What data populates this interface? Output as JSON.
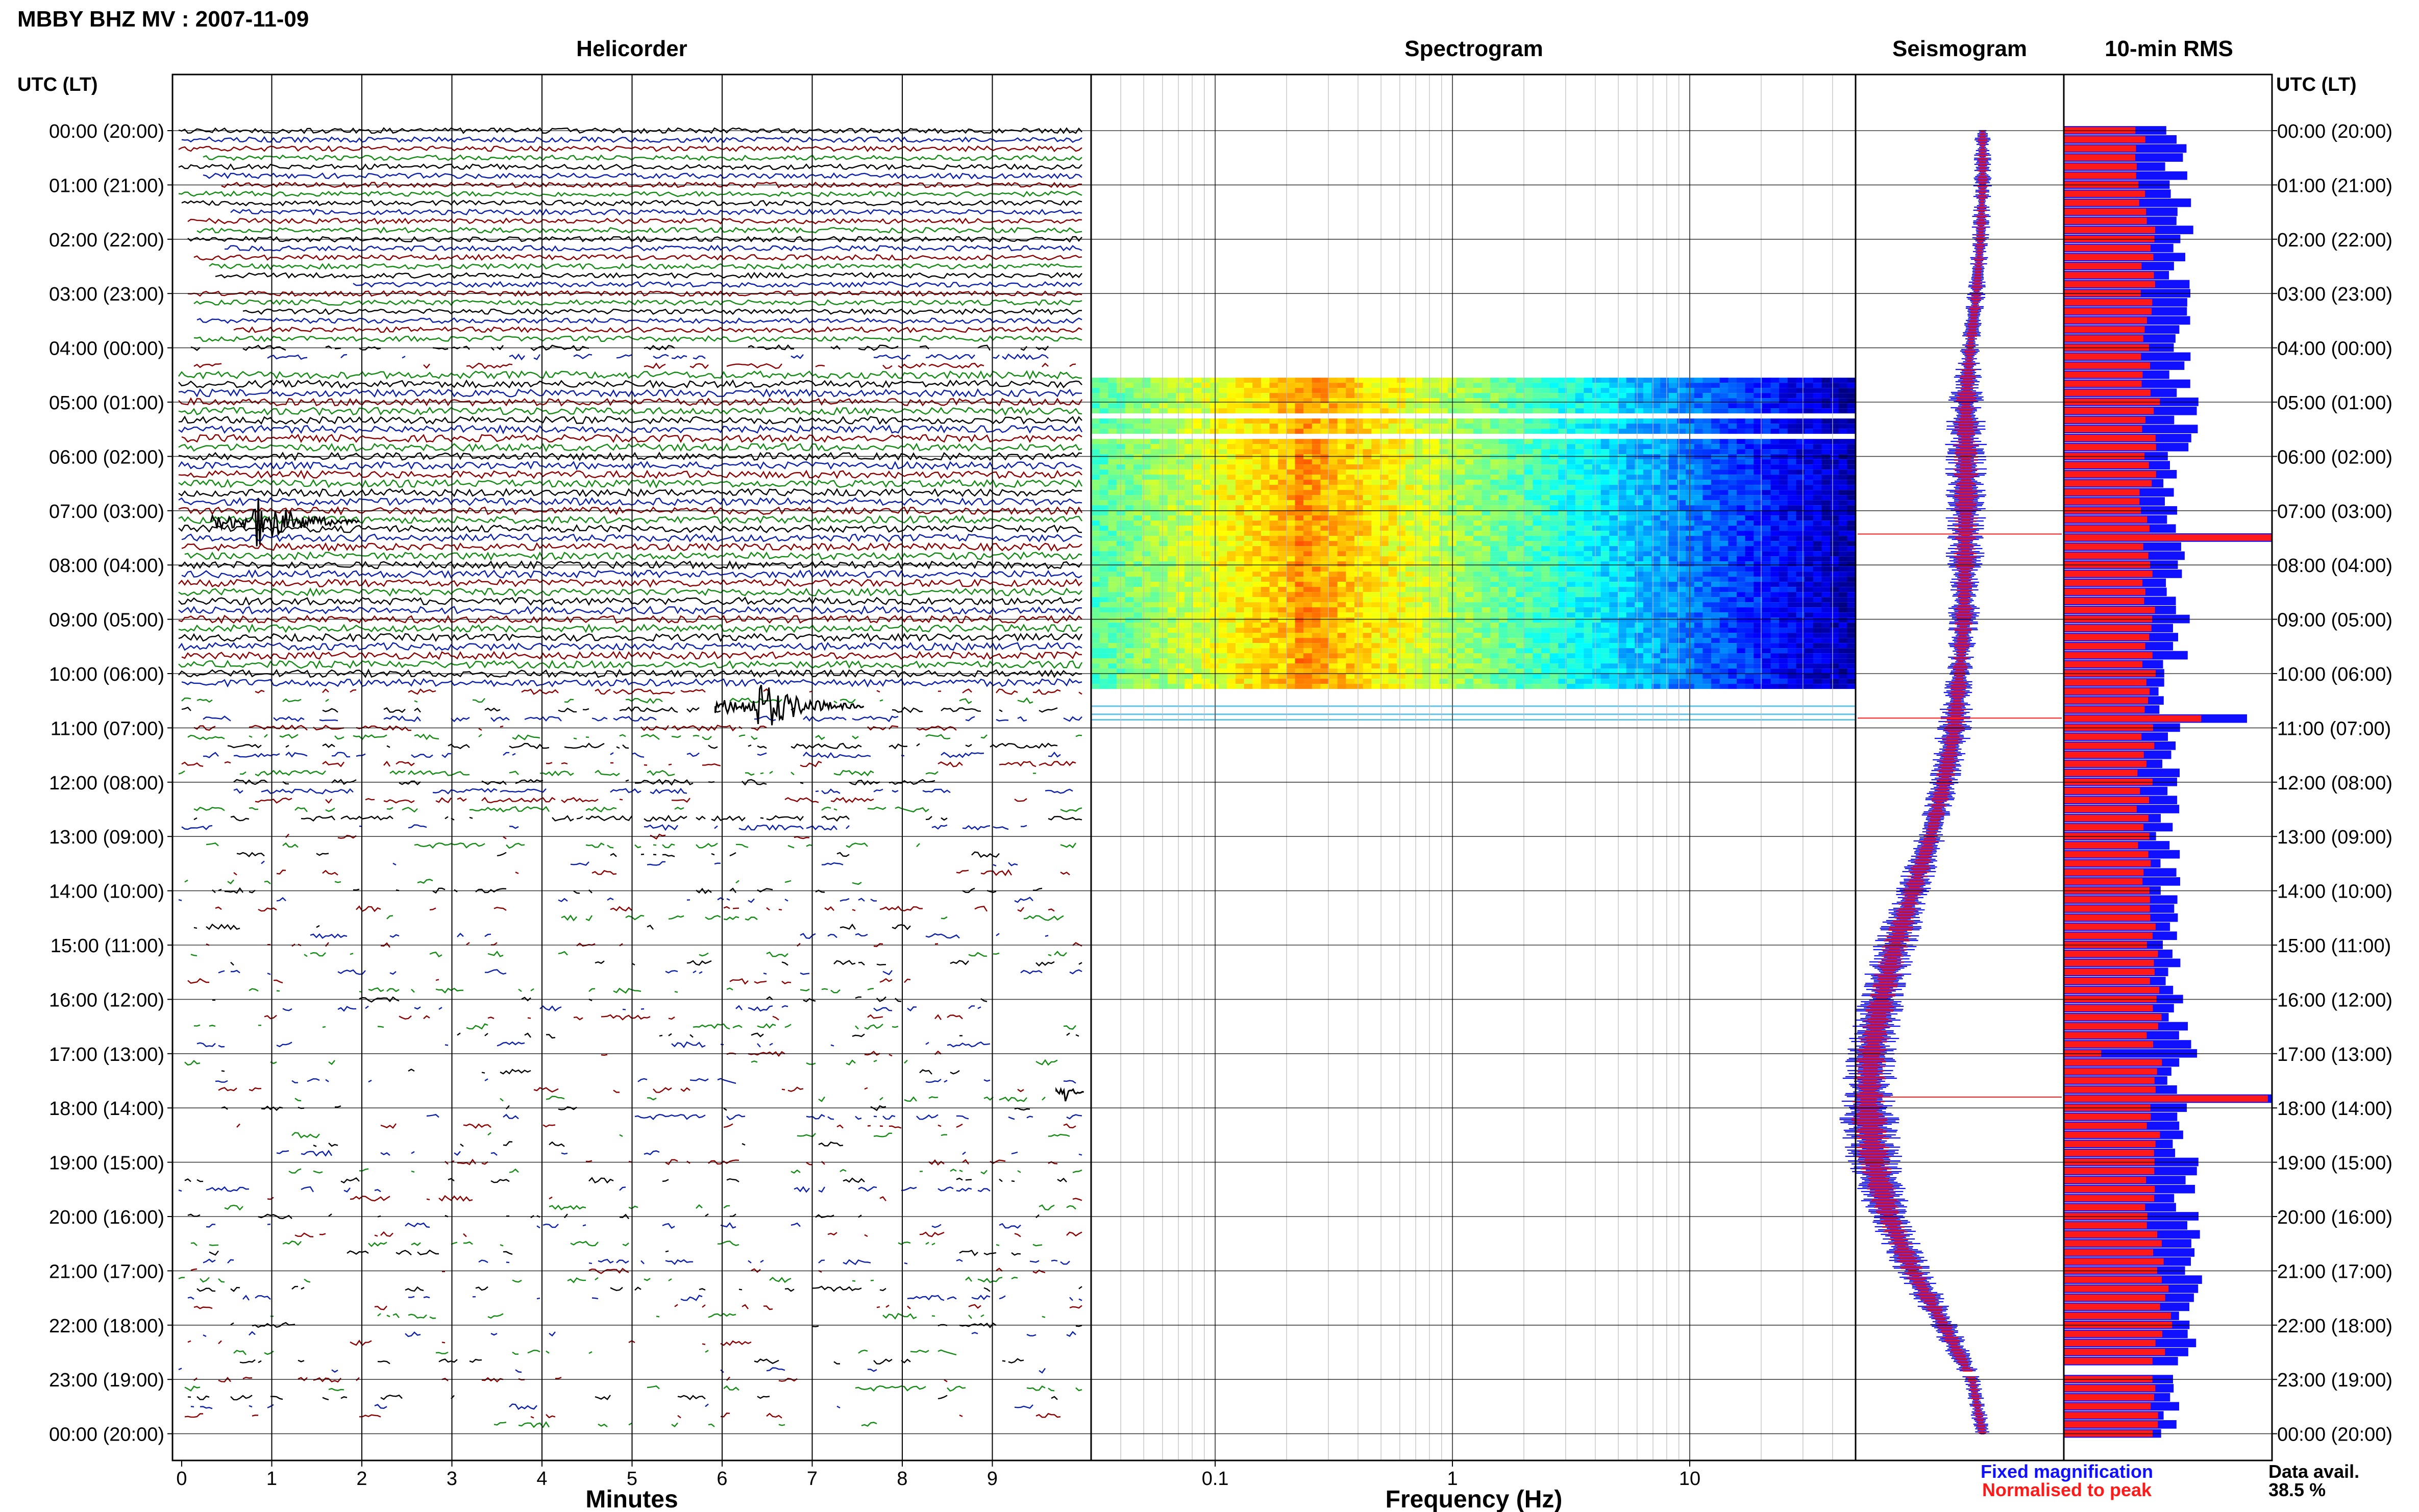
{
  "header": {
    "station_title": "MBBY BHZ MV : 2007-11-09",
    "panel_helicorder": "Helicorder",
    "panel_spectrogram": "Spectrogram",
    "panel_seismogram": "Seismogram",
    "panel_rms": "10-min RMS",
    "left_time_header": "UTC (LT)",
    "right_time_header": "UTC (LT)"
  },
  "footer": {
    "minutes_label": "Minutes",
    "frequency_label": "Frequency (Hz)",
    "legend_fixed": "Fixed magnification",
    "legend_normalised": "Normalised to peak",
    "data_avail_label": "Data avail.",
    "data_avail_value": "38.5 %"
  },
  "colors": {
    "trace_black": "#000000",
    "trace_red": "#8b0000",
    "trace_blue": "#0b1fa8",
    "trace_green": "#138a13",
    "fixed_blue": "#1010ff",
    "normalised_red": "#ff1a1a",
    "grid": "#000000"
  },
  "chart_data": [
    {
      "type": "line",
      "name": "helicorder",
      "title": "Helicorder",
      "xlabel": "Minutes",
      "x_ticks": [
        "0",
        "1",
        "2",
        "3",
        "4",
        "5",
        "6",
        "7",
        "8",
        "9"
      ],
      "xlim": [
        0,
        10
      ],
      "y_ticks": [
        "00:00 (20:00)",
        "01:00 (21:00)",
        "02:00 (22:00)",
        "03:00 (23:00)",
        "04:00 (00:00)",
        "05:00 (01:00)",
        "06:00 (02:00)",
        "07:00 (03:00)",
        "08:00 (04:00)",
        "09:00 (05:00)",
        "10:00 (06:00)",
        "11:00 (07:00)",
        "12:00 (08:00)",
        "13:00 (09:00)",
        "14:00 (10:00)",
        "15:00 (11:00)",
        "16:00 (12:00)",
        "17:00 (13:00)",
        "18:00 (14:00)",
        "19:00 (15:00)",
        "20:00 (16:00)",
        "21:00 (17:00)",
        "22:00 (18:00)",
        "23:00 (19:00)",
        "00:00 (20:00)"
      ],
      "continuous_data_hours_utc": [
        4.4,
        10.2
      ],
      "events": [
        {
          "hour": 7.2,
          "minute": 0.8,
          "amplitude": "large"
        },
        {
          "hour": 10.6,
          "minute": 6.4,
          "amplitude": "large"
        },
        {
          "hour": 17.7,
          "minute": 9.8,
          "amplitude": "small"
        }
      ]
    },
    {
      "type": "heatmap",
      "name": "spectrogram",
      "title": "Spectrogram",
      "xlabel": "Frequency (Hz)",
      "x_scale": "log",
      "x_ticks": [
        "0.1",
        "1",
        "10"
      ],
      "xlim": [
        0.03,
        50
      ],
      "rows_hours_utc": [
        4.55,
        10.2
      ],
      "peak_energy_hz": [
        0.15,
        0.4
      ],
      "extra_lines_hours_utc": [
        10.6,
        10.75,
        10.85
      ]
    },
    {
      "type": "line",
      "name": "seismogram",
      "title": "Seismogram",
      "hours": [
        0,
        1,
        2,
        3,
        4,
        5,
        6,
        7,
        8,
        9,
        10,
        11,
        12,
        13,
        14,
        15,
        16,
        17,
        18,
        19,
        20,
        21,
        22,
        23,
        24
      ],
      "center_offset": [
        0.22,
        0.22,
        0.2,
        0.16,
        0.1,
        0.06,
        0.06,
        0.06,
        0.05,
        0.04,
        0.0,
        -0.05,
        -0.15,
        -0.28,
        -0.45,
        -0.62,
        -0.75,
        -0.85,
        -0.88,
        -0.82,
        -0.68,
        -0.45,
        -0.15,
        0.12,
        0.22
      ],
      "spread": [
        0.05,
        0.06,
        0.06,
        0.06,
        0.06,
        0.12,
        0.14,
        0.14,
        0.12,
        0.1,
        0.08,
        0.12,
        0.1,
        0.1,
        0.12,
        0.14,
        0.16,
        0.16,
        0.2,
        0.18,
        0.14,
        0.12,
        0.1,
        0.06,
        0.05
      ],
      "spikes_hours": [
        7.43,
        10.82,
        17.8
      ]
    },
    {
      "type": "bar",
      "name": "rms",
      "title": "10-min RMS",
      "bin_minutes": 10,
      "xlim": [
        0,
        1
      ],
      "fixed_profile_hours": [
        0,
        2,
        4,
        5,
        7,
        9,
        11,
        13,
        15,
        17,
        19,
        21,
        22,
        23,
        24
      ],
      "fixed_profile_values": [
        0.52,
        0.58,
        0.55,
        0.6,
        0.52,
        0.55,
        0.5,
        0.5,
        0.52,
        0.55,
        0.58,
        0.6,
        0.62,
        0.56,
        0.52
      ],
      "normalised_profile_hours": [
        0,
        2,
        4,
        5,
        7,
        9,
        11,
        13,
        15,
        17,
        19,
        21,
        22,
        23,
        24
      ],
      "normalised_profile_values": [
        0.36,
        0.42,
        0.4,
        0.42,
        0.4,
        0.42,
        0.4,
        0.38,
        0.42,
        0.44,
        0.42,
        0.45,
        0.48,
        0.44,
        0.42
      ],
      "peak_bins": [
        {
          "hour": 7.5,
          "fixed": 1.0,
          "normalised": 1.0
        },
        {
          "hour": 10.8,
          "fixed": 0.88,
          "normalised": 0.66
        },
        {
          "hour": 17.8,
          "fixed": 1.0,
          "normalised": 0.98
        },
        {
          "hour": 17.0,
          "fixed": 0.64,
          "normalised": 0.18
        }
      ],
      "gaps_hours": [
        22.9
      ]
    }
  ]
}
